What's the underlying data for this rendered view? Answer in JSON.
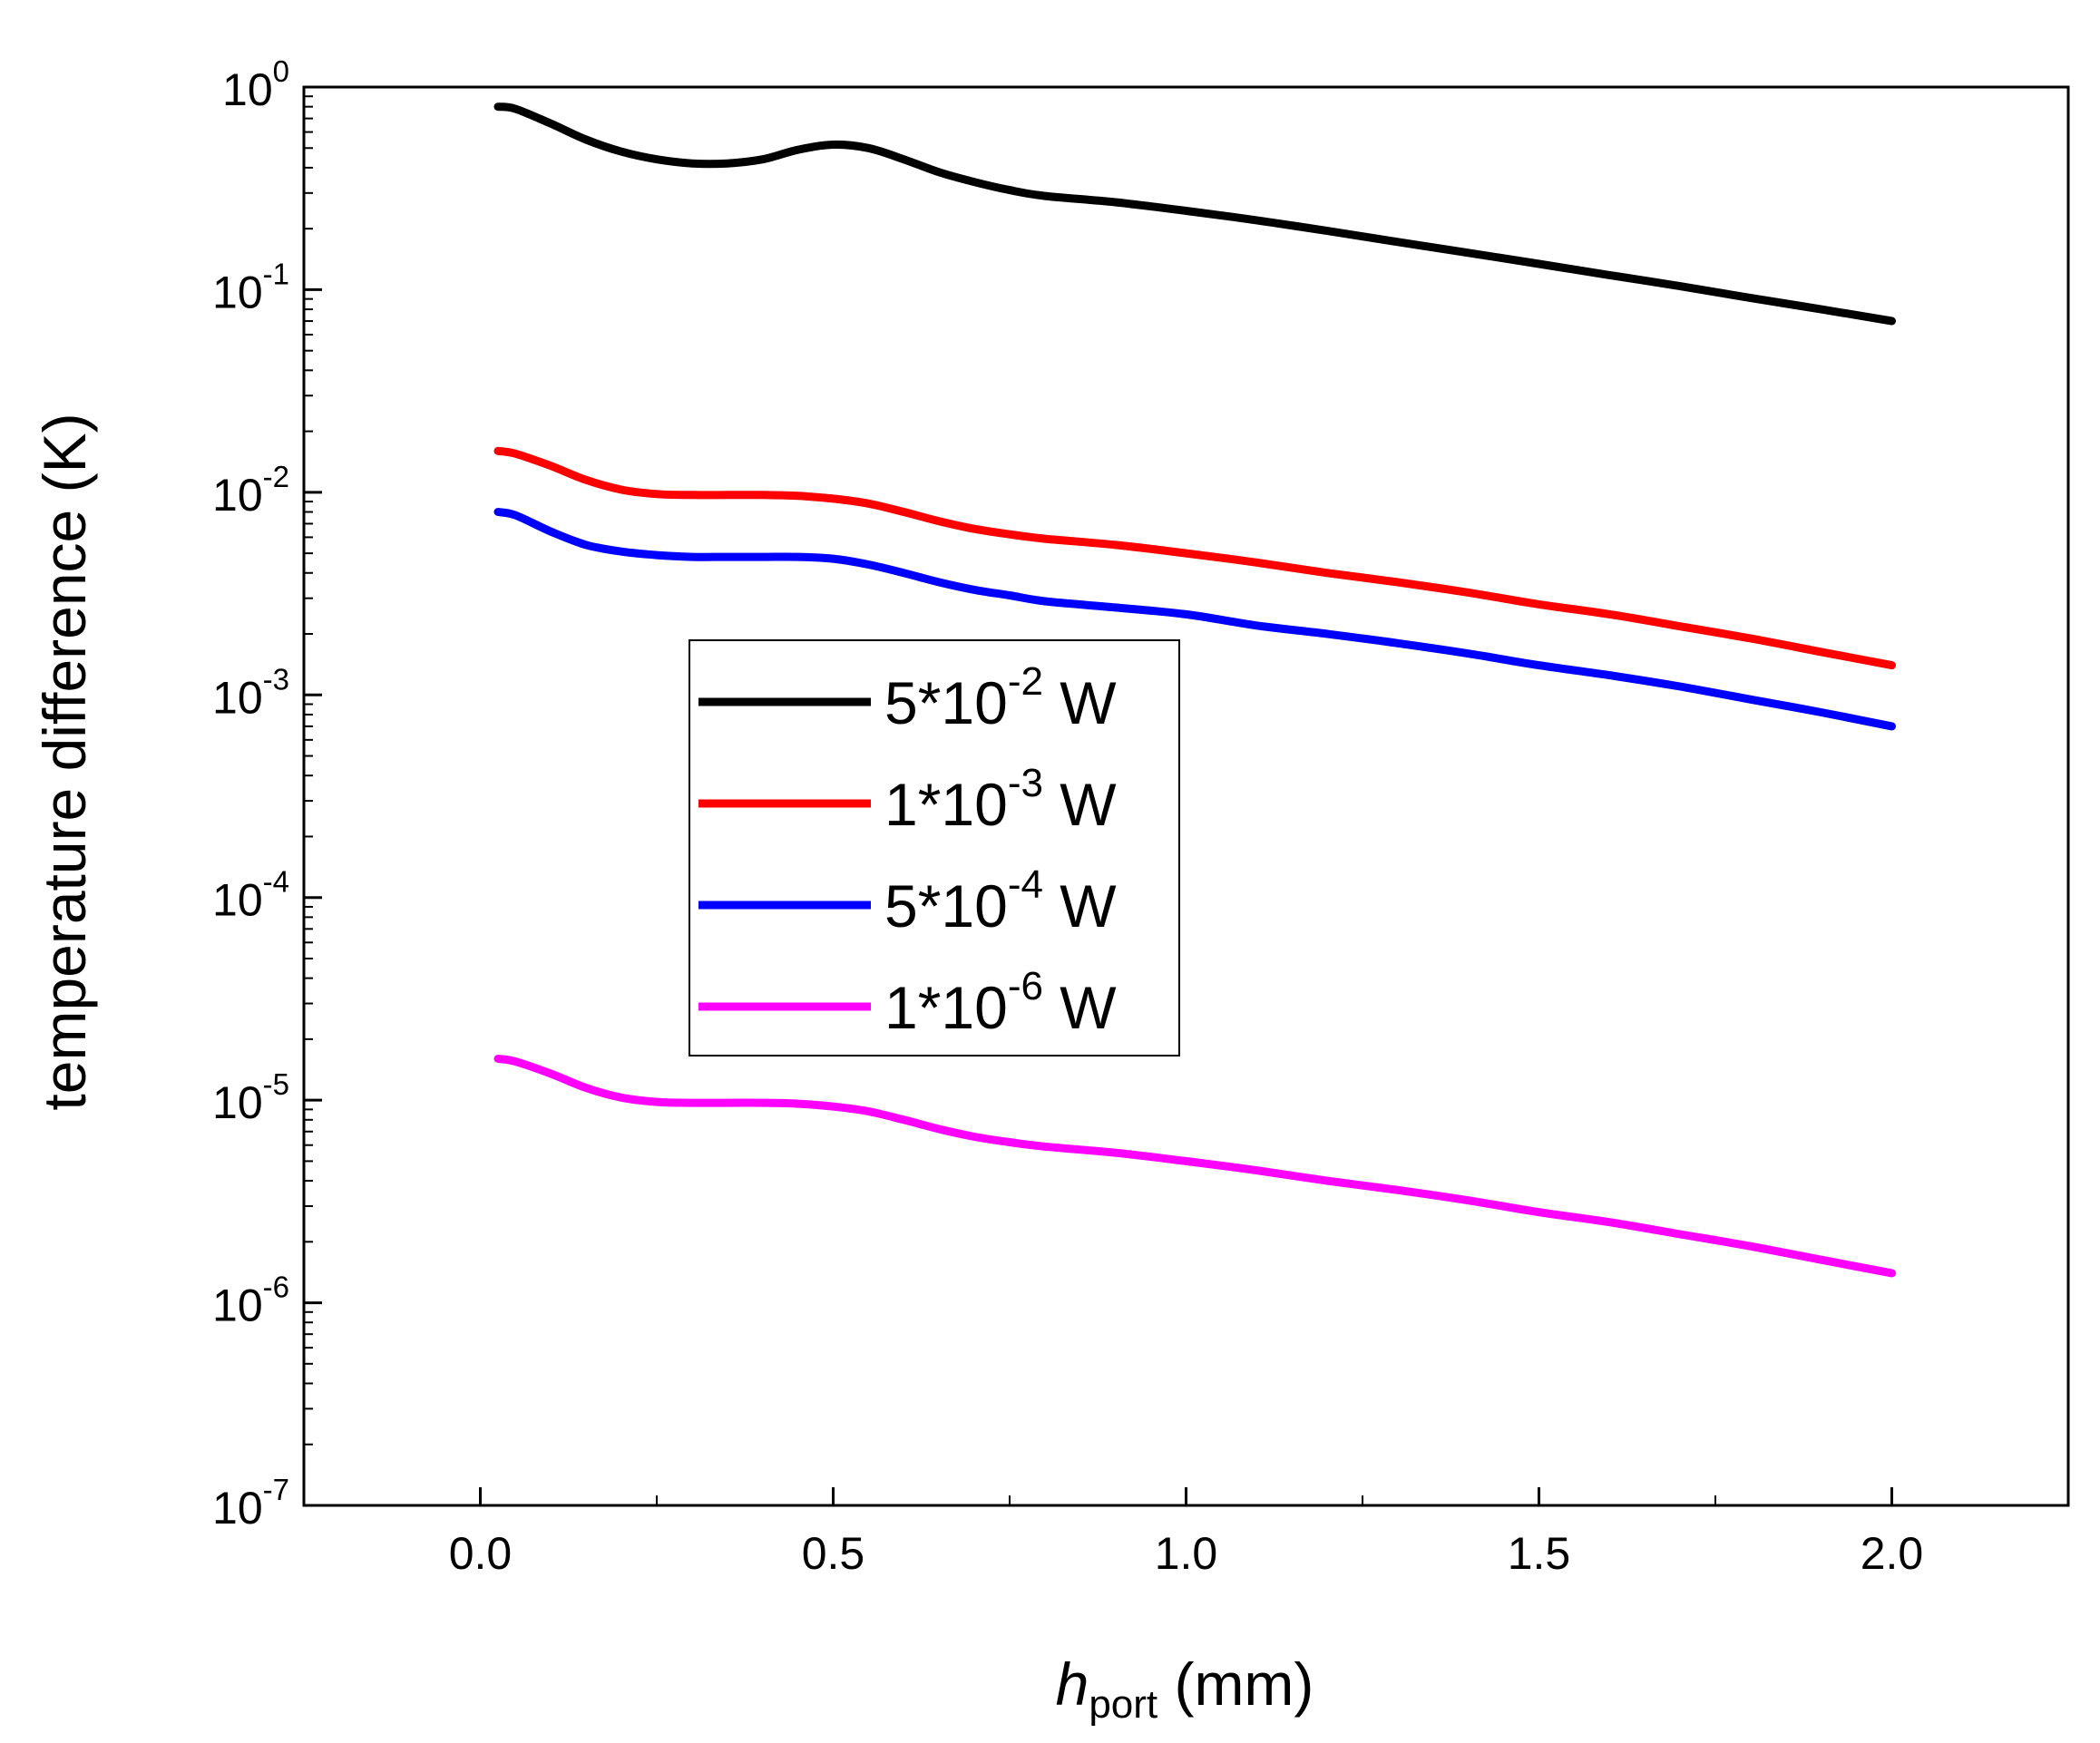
{
  "chart_data": {
    "type": "line",
    "title": "",
    "xlabel": {
      "italic": "h",
      "sub": "port",
      "rest": " (mm)"
    },
    "ylabel": "temperature difference (K)",
    "xlim": [
      -0.25,
      2.25
    ],
    "ylim_log10": [
      -7,
      0
    ],
    "yscale": "log",
    "x_ticks": [
      0.0,
      0.5,
      1.0,
      1.5,
      2.0
    ],
    "x_tick_labels": [
      "0.0",
      "0.5",
      "1.0",
      "1.5",
      "2.0"
    ],
    "y_tick_exponents": [
      0,
      -1,
      -2,
      -3,
      -4,
      -5,
      -6,
      -7
    ],
    "y_tick_labels": [
      {
        "base": "10",
        "exp": "0"
      },
      {
        "base": "10",
        "exp": "-1"
      },
      {
        "base": "10",
        "exp": "-2"
      },
      {
        "base": "10",
        "exp": "-3"
      },
      {
        "base": "10",
        "exp": "-4"
      },
      {
        "base": "10",
        "exp": "-5"
      },
      {
        "base": "10",
        "exp": "-6"
      },
      {
        "base": "10",
        "exp": "-7"
      }
    ],
    "legend_position": "center-left",
    "x": [
      0.025,
      0.05,
      0.1,
      0.15,
      0.2,
      0.25,
      0.3,
      0.35,
      0.4,
      0.45,
      0.5,
      0.55,
      0.6,
      0.65,
      0.7,
      0.75,
      0.8,
      0.9,
      1.0,
      1.1,
      1.2,
      1.3,
      1.4,
      1.5,
      1.6,
      1.7,
      1.8,
      1.9,
      2.0
    ],
    "series": [
      {
        "name": "5*10-2 W",
        "label_parts": {
          "pre": "5*10",
          "exp": "-2",
          "post": " W"
        },
        "color": "#000000",
        "values": [
          0.8,
          0.78,
          0.66,
          0.55,
          0.48,
          0.44,
          0.42,
          0.42,
          0.44,
          0.49,
          0.52,
          0.5,
          0.44,
          0.38,
          0.34,
          0.31,
          0.29,
          0.27,
          0.245,
          0.22,
          0.195,
          0.172,
          0.152,
          0.134,
          0.118,
          0.104,
          0.091,
          0.08,
          0.07
        ]
      },
      {
        "name": "1*10-3 W",
        "label_parts": {
          "pre": "1*10",
          "exp": "-3",
          "post": " W"
        },
        "color": "#ff0000",
        "values": [
          0.016,
          0.0155,
          0.0135,
          0.0115,
          0.0103,
          0.0098,
          0.0097,
          0.0097,
          0.0097,
          0.0096,
          0.0093,
          0.0088,
          0.008,
          0.0072,
          0.0066,
          0.0062,
          0.0059,
          0.0055,
          0.005,
          0.0045,
          0.004,
          0.0036,
          0.0032,
          0.0028,
          0.0025,
          0.00218,
          0.0019,
          0.00163,
          0.0014
        ]
      },
      {
        "name": "5*10-4 W",
        "label_parts": {
          "pre": "5*10",
          "exp": "-4",
          "post": " W"
        },
        "color": "#0000ff",
        "values": [
          0.008,
          0.0077,
          0.0064,
          0.0055,
          0.0051,
          0.0049,
          0.0048,
          0.0048,
          0.0048,
          0.0048,
          0.0047,
          0.0044,
          0.004,
          0.0036,
          0.0033,
          0.0031,
          0.0029,
          0.0027,
          0.0025,
          0.0022,
          0.002,
          0.0018,
          0.0016,
          0.0014,
          0.00125,
          0.0011,
          0.00095,
          0.00082,
          0.0007
        ]
      },
      {
        "name": "1*10-6 W",
        "label_parts": {
          "pre": "1*10",
          "exp": "-6",
          "post": " W"
        },
        "color": "#ff00ff",
        "values": [
          1.6e-05,
          1.55e-05,
          1.35e-05,
          1.15e-05,
          1.03e-05,
          9.8e-06,
          9.7e-06,
          9.7e-06,
          9.7e-06,
          9.6e-06,
          9.3e-06,
          8.8e-06,
          8e-06,
          7.2e-06,
          6.6e-06,
          6.2e-06,
          5.9e-06,
          5.5e-06,
          5e-06,
          4.5e-06,
          4e-06,
          3.6e-06,
          3.2e-06,
          2.8e-06,
          2.5e-06,
          2.18e-06,
          1.9e-06,
          1.63e-06,
          1.4e-06
        ]
      }
    ]
  }
}
